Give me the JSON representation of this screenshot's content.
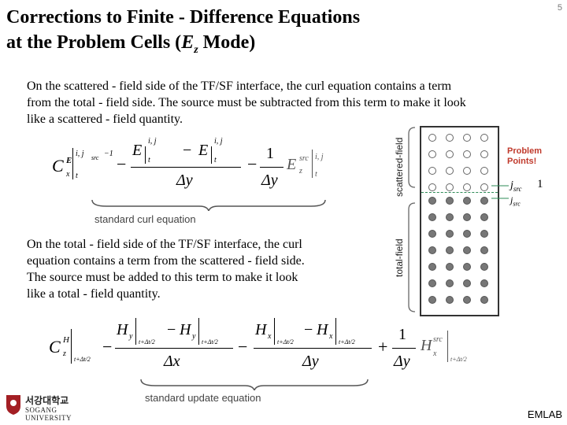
{
  "page_number": "5",
  "title": {
    "line1": "Corrections to Finite - Difference Equations",
    "line2_prefix": "at the Problem Cells (",
    "line2_field": "E",
    "line2_sub": "z",
    "line2_suffix": " Mode)"
  },
  "paragraph1": {
    "line1": "On the scattered - field side of the TF/SF interface, the curl equation contains a term",
    "line2": "from the total - field side. The source must be subtracted from this term to make it look",
    "line3": "like a scattered - field quantity."
  },
  "paragraph2": {
    "line1": "On the total - field side of the TF/SF interface, the curl",
    "line2": "equation contains a term from the scattered - field side.",
    "line3": "The source must be added to this term to make it look",
    "line4": "like a total - field quantity."
  },
  "brace_labels": {
    "curl": "standard curl equation",
    "update": "standard update equation"
  },
  "diagram": {
    "scattered_label": "scattered-field",
    "total_label": "total-field",
    "problem_points_line1": "Problem",
    "problem_points_line2": "Points!",
    "jsrc_plus": "j",
    "jsrc_plus_sub": "src",
    "jsrc_one": "1",
    "jsrc_label": "j",
    "jsrc_label_sub": "src",
    "colors": {
      "problem": "#c0392b",
      "dashed": "#2e8b57",
      "open": "#ffffff",
      "filled": "#777777"
    }
  },
  "equation1": {
    "lhs": "C",
    "lhs_sup": "E",
    "lhs_sub": "x",
    "minus": "−",
    "numerator_left": "E",
    "numerator_minus": "−",
    "numerator_right": "E",
    "denominator": "Δy",
    "one": "1",
    "source": "E",
    "source_sup": "src",
    "source_sub": "z",
    "idx_top": "i, j",
    "idx_src": "src",
    "idx_m1": "−1",
    "t": "t"
  },
  "equation2": {
    "lhs": "C",
    "lhs_sup": "H",
    "lhs_sub": "z",
    "h1": "H",
    "h1_sub": "y",
    "h2": "H",
    "h2_sub": "y",
    "h3": "H",
    "h3_sub": "x",
    "h4": "H",
    "h4_sub": "x",
    "dx": "Δx",
    "dy": "Δy",
    "one": "1",
    "source": "H",
    "source_sup": "src",
    "source_sub": "x",
    "time": "t+Δt/2",
    "plus": "+"
  },
  "logo": {
    "korean": "서강대학교",
    "english": "SOGANG UNIVERSITY"
  },
  "lab": "EMLAB"
}
